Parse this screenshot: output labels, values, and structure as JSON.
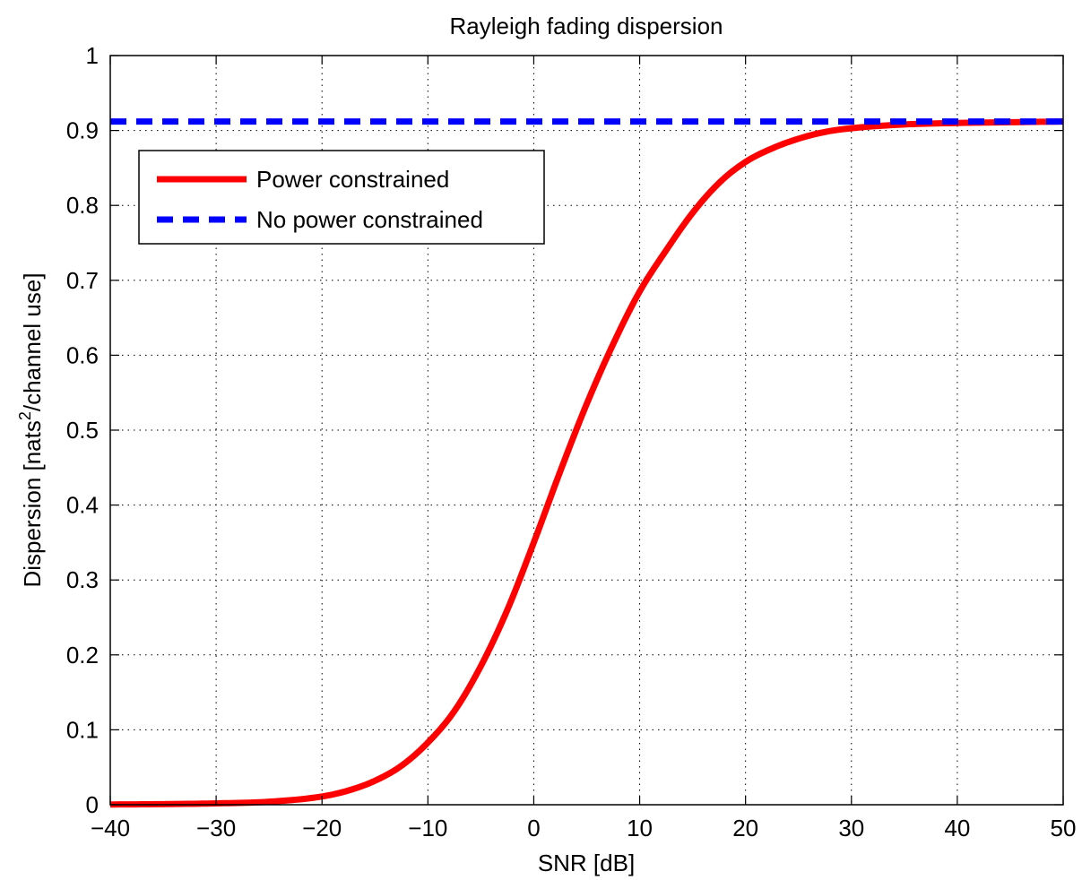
{
  "chart_data": {
    "type": "line",
    "title": "Rayleigh fading dispersion",
    "xlabel": "SNR [dB]",
    "ylabel": {
      "prefix": "Dispersion [nats",
      "superscript": "2",
      "suffix": "/channel use]"
    },
    "xlim": [
      -40,
      50
    ],
    "ylim": [
      0,
      1
    ],
    "xticks": [
      -40,
      -30,
      -20,
      -10,
      0,
      10,
      20,
      30,
      40,
      50
    ],
    "xtick_labels": [
      "−40",
      "−30",
      "−20",
      "−10",
      "0",
      "10",
      "20",
      "30",
      "40",
      "50"
    ],
    "yticks": [
      0,
      0.1,
      0.2,
      0.3,
      0.4,
      0.5,
      0.6,
      0.7,
      0.8,
      0.9,
      1
    ],
    "ytick_labels": [
      "0",
      "0.1",
      "0.2",
      "0.3",
      "0.4",
      "0.5",
      "0.6",
      "0.7",
      "0.8",
      "0.9",
      "1"
    ],
    "grid": true,
    "legend_position": "upper-left",
    "series": [
      {
        "name": "Power constrained",
        "color": "#ff0000",
        "style": "solid",
        "x": [
          -40,
          -35,
          -30,
          -25,
          -20,
          -17.5,
          -15,
          -12.5,
          -10,
          -7.5,
          -5,
          -2.5,
          0,
          2.5,
          5,
          7.5,
          10,
          12.5,
          15,
          17.5,
          20,
          22.5,
          25,
          27.5,
          30,
          35,
          40,
          45,
          50
        ],
        "y": [
          0.0003,
          0.0008,
          0.0018,
          0.004,
          0.011,
          0.019,
          0.032,
          0.052,
          0.083,
          0.125,
          0.185,
          0.26,
          0.35,
          0.445,
          0.535,
          0.615,
          0.685,
          0.74,
          0.79,
          0.83,
          0.858,
          0.876,
          0.889,
          0.898,
          0.903,
          0.908,
          0.91,
          0.911,
          0.912
        ]
      },
      {
        "name": "No power constrained",
        "color": "#0000ff",
        "style": "dashed",
        "x": [
          -40,
          50
        ],
        "y": [
          0.912,
          0.912
        ]
      }
    ]
  }
}
